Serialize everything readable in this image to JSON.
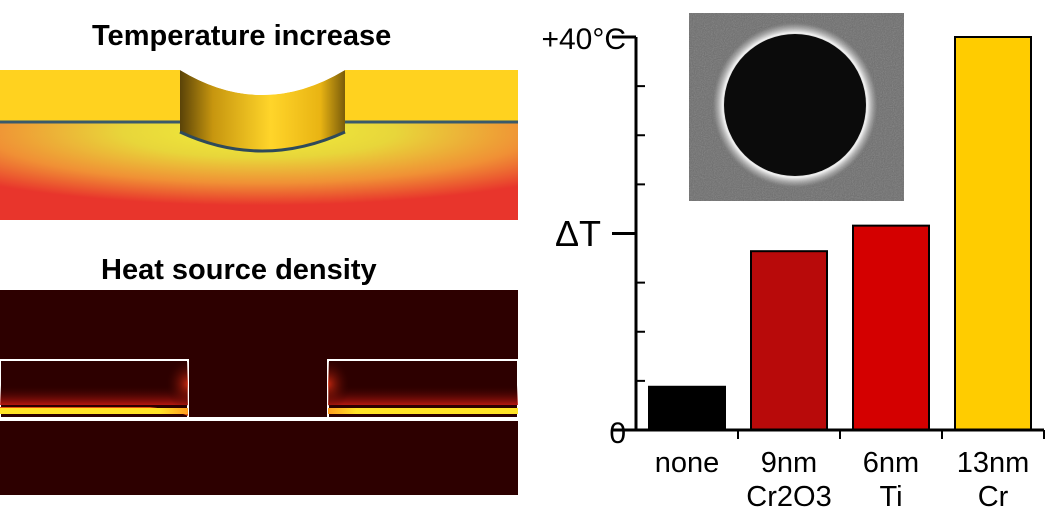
{
  "panels": {
    "temperature_title": "Temperature increase",
    "heat_source_title": "Heat source density"
  },
  "colors": {
    "gold": "#ffd21f",
    "dark_background": "#2d0000",
    "heat_red": "#e8302a",
    "heat_yellow": "#ffe326"
  },
  "chart_data": {
    "type": "bar",
    "categories": [
      {
        "line1": "none",
        "line2": ""
      },
      {
        "line1": "9nm",
        "line2": "Cr2O3"
      },
      {
        "line1": "6nm",
        "line2": "Ti"
      },
      {
        "line1": "13nm",
        "line2": "Cr"
      }
    ],
    "values": [
      0.11,
      0.455,
      0.52,
      1.0
    ],
    "bar_colors": [
      "#000000",
      "#b80a0a",
      "#d40000",
      "#ffcc00"
    ],
    "ylabel": "ΔT",
    "y_tick_labels": {
      "top": "+40°C",
      "bottom": "0"
    },
    "ylim": [
      0,
      1
    ],
    "grid": false
  }
}
